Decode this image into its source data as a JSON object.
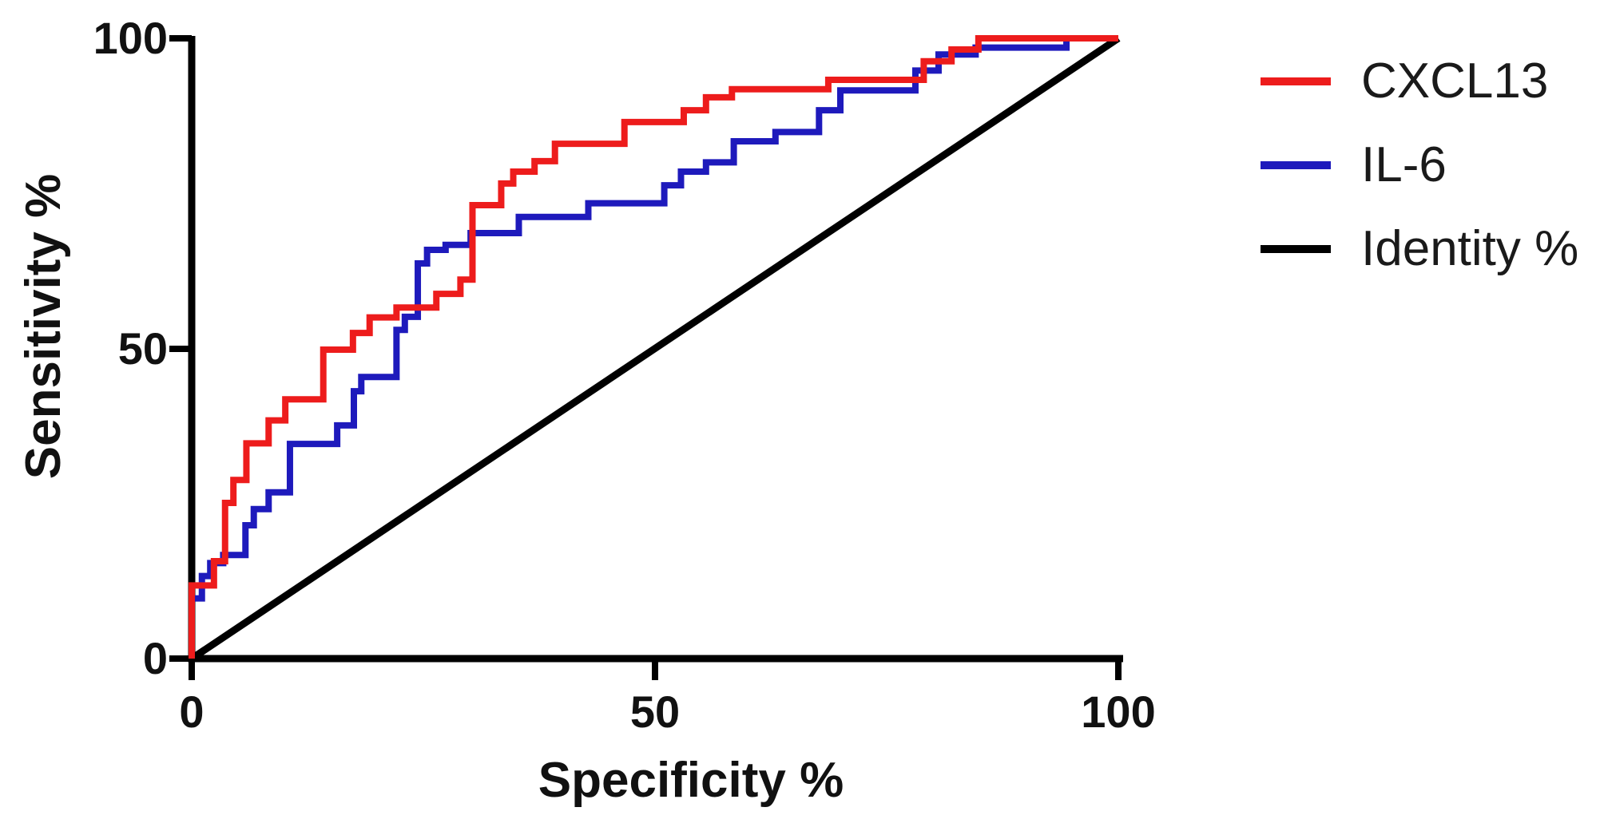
{
  "chart_data": {
    "type": "line",
    "subtype": "roc-step-curves",
    "title": "",
    "xlabel": "Specificity %",
    "ylabel": "Sensitivity %",
    "xlim": [
      0,
      100
    ],
    "ylim": [
      0,
      100
    ],
    "xticks": [
      0,
      50,
      100
    ],
    "yticks": [
      0,
      50,
      100
    ],
    "grid": false,
    "legend_position": "right",
    "axis_color": "#000000",
    "series": [
      {
        "name": "CXCL13",
        "color": "#ed1c1c",
        "style": "step",
        "points": [
          [
            0,
            0
          ],
          [
            0,
            11.8
          ],
          [
            2.4,
            11.8
          ],
          [
            2.4,
            15.7
          ],
          [
            3.6,
            15.7
          ],
          [
            3.6,
            25.1
          ],
          [
            4.5,
            25.1
          ],
          [
            4.5,
            28.8
          ],
          [
            5.9,
            28.8
          ],
          [
            5.9,
            34.7
          ],
          [
            8.3,
            34.7
          ],
          [
            8.3,
            38.4
          ],
          [
            10.1,
            38.4
          ],
          [
            10.1,
            41.8
          ],
          [
            14.2,
            41.8
          ],
          [
            14.2,
            49.8
          ],
          [
            17.4,
            49.8
          ],
          [
            17.4,
            52.5
          ],
          [
            19.2,
            52.5
          ],
          [
            19.2,
            55
          ],
          [
            22.1,
            55
          ],
          [
            22.1,
            56.6
          ],
          [
            26.4,
            56.6
          ],
          [
            26.4,
            58.8
          ],
          [
            29,
            58.8
          ],
          [
            29,
            61.1
          ],
          [
            30.3,
            61.1
          ],
          [
            30.3,
            73.1
          ],
          [
            33.4,
            73.1
          ],
          [
            33.4,
            76.6
          ],
          [
            34.7,
            76.6
          ],
          [
            34.7,
            78.5
          ],
          [
            37,
            78.5
          ],
          [
            37,
            80.2
          ],
          [
            39.2,
            80.2
          ],
          [
            39.2,
            83
          ],
          [
            46.7,
            83
          ],
          [
            46.7,
            86.5
          ],
          [
            53.1,
            86.5
          ],
          [
            53.1,
            88.4
          ],
          [
            55.5,
            88.4
          ],
          [
            55.5,
            90.5
          ],
          [
            58.3,
            90.5
          ],
          [
            58.3,
            91.8
          ],
          [
            68.7,
            91.8
          ],
          [
            68.7,
            93.3
          ],
          [
            79,
            93.3
          ],
          [
            79,
            96.3
          ],
          [
            82,
            96.3
          ],
          [
            82,
            98.2
          ],
          [
            84.9,
            98.2
          ],
          [
            84.9,
            100
          ],
          [
            100,
            100
          ]
        ]
      },
      {
        "name": "IL-6",
        "color": "#1e1abc",
        "style": "step",
        "points": [
          [
            0,
            0
          ],
          [
            0,
            9.7
          ],
          [
            1.1,
            9.7
          ],
          [
            1.1,
            13.3
          ],
          [
            2,
            13.3
          ],
          [
            2,
            15.4
          ],
          [
            3.4,
            15.4
          ],
          [
            3.4,
            16.7
          ],
          [
            5.8,
            16.7
          ],
          [
            5.8,
            21.5
          ],
          [
            6.7,
            21.5
          ],
          [
            6.7,
            24.1
          ],
          [
            8.3,
            24.1
          ],
          [
            8.3,
            26.8
          ],
          [
            10.6,
            26.8
          ],
          [
            10.6,
            34.6
          ],
          [
            15.7,
            34.6
          ],
          [
            15.7,
            37.6
          ],
          [
            17.5,
            37.6
          ],
          [
            17.5,
            43.1
          ],
          [
            18.3,
            43.1
          ],
          [
            18.3,
            45.4
          ],
          [
            22.1,
            45.4
          ],
          [
            22.1,
            53
          ],
          [
            23,
            53
          ],
          [
            23,
            55.1
          ],
          [
            24.4,
            55.1
          ],
          [
            24.4,
            63.7
          ],
          [
            25.4,
            63.7
          ],
          [
            25.4,
            65.9
          ],
          [
            27.4,
            65.9
          ],
          [
            27.4,
            66.7
          ],
          [
            30.1,
            66.7
          ],
          [
            30.1,
            68.6
          ],
          [
            35.3,
            68.6
          ],
          [
            35.3,
            71.2
          ],
          [
            42.8,
            71.2
          ],
          [
            42.8,
            73.4
          ],
          [
            51,
            73.4
          ],
          [
            51,
            76.3
          ],
          [
            52.8,
            76.3
          ],
          [
            52.8,
            78.5
          ],
          [
            55.5,
            78.5
          ],
          [
            55.5,
            80
          ],
          [
            58.5,
            80
          ],
          [
            58.5,
            83.4
          ],
          [
            63,
            83.4
          ],
          [
            63,
            84.9
          ],
          [
            67.7,
            84.9
          ],
          [
            67.7,
            88.4
          ],
          [
            70,
            88.4
          ],
          [
            70,
            91.6
          ],
          [
            78.1,
            91.6
          ],
          [
            78.1,
            94.8
          ],
          [
            80.6,
            94.8
          ],
          [
            80.6,
            97.4
          ],
          [
            84.6,
            97.4
          ],
          [
            84.6,
            98.5
          ],
          [
            94.4,
            98.5
          ],
          [
            94.4,
            100
          ],
          [
            100,
            100
          ]
        ]
      },
      {
        "name": "Identity %",
        "color": "#000000",
        "style": "straight",
        "points": [
          [
            0,
            0
          ],
          [
            100,
            100
          ]
        ]
      }
    ]
  }
}
